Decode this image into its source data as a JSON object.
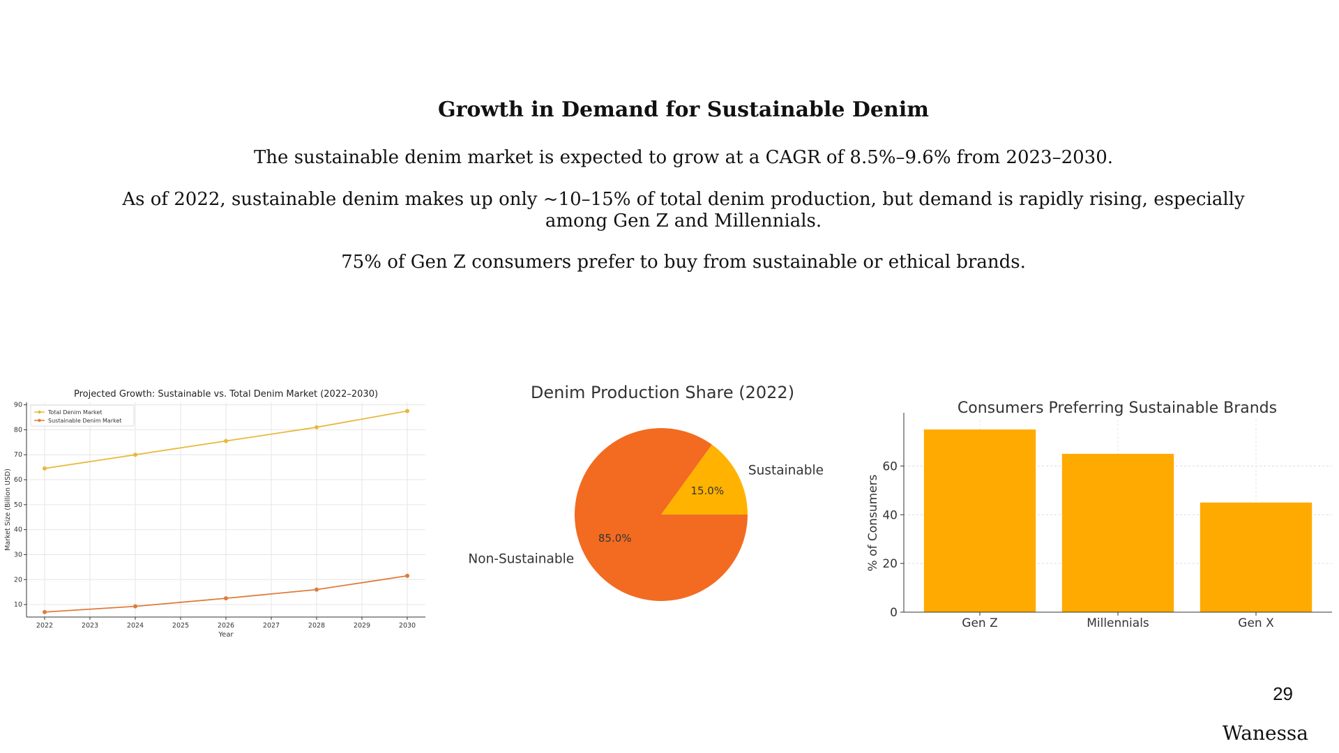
{
  "slide": {
    "title": "Growth in Demand for Sustainable Denim",
    "paragraphs": [
      "The sustainable denim market is expected to grow at a CAGR of 8.5%–9.6% from 2023–2030.",
      "As of 2022, sustainable denim makes up only ~10–15% of total denim production, but demand is rapidly rising, especially among Gen Z and Millennials.",
      "75% of Gen Z consumers prefer to buy from sustainable or ethical brands."
    ],
    "page_number": "29",
    "author": "Wanessa"
  },
  "chart_data": [
    {
      "type": "line",
      "title": "Projected Growth: Sustainable vs. Total Denim Market (2022–2030)",
      "xlabel": "Year",
      "ylabel": "Market Size (Billion USD)",
      "x_ticks": [
        "2022",
        "2023",
        "2024",
        "2025",
        "2026",
        "2027",
        "2028",
        "2029",
        "2030"
      ],
      "y_ticks": [
        10,
        20,
        30,
        40,
        50,
        60,
        70,
        80,
        90
      ],
      "xlim": [
        2021.6,
        2030.4
      ],
      "ylim": [
        5,
        91
      ],
      "grid": true,
      "legend_position": "top-left",
      "series": [
        {
          "name": "Total Denim Market",
          "color": "#e8b83a",
          "x": [
            2022,
            2024,
            2026,
            2028,
            2030
          ],
          "y": [
            64.5,
            70,
            75.5,
            81,
            87.5
          ]
        },
        {
          "name": "Sustainable Denim Market",
          "color": "#e07b39",
          "x": [
            2022,
            2024,
            2026,
            2028,
            2030
          ],
          "y": [
            7,
            9.3,
            12.5,
            16,
            21.5
          ]
        }
      ]
    },
    {
      "type": "pie",
      "title": "Denim Production Share (2022)",
      "slices": [
        {
          "label": "Sustainable",
          "value": 15.0,
          "pct_label": "15.0%",
          "color": "#ffb300"
        },
        {
          "label": "Non-Sustainable",
          "value": 85.0,
          "pct_label": "85.0%",
          "color": "#f26b21"
        }
      ]
    },
    {
      "type": "bar",
      "title": "Consumers Preferring Sustainable Brands",
      "xlabel": "",
      "ylabel": "% of Consumers",
      "categories": [
        "Gen Z",
        "Millennials",
        "Gen X"
      ],
      "values": [
        75,
        65,
        45
      ],
      "y_ticks": [
        0,
        20,
        40,
        60
      ],
      "ylim": [
        0,
        79
      ],
      "color": "#ffaa00",
      "grid": true
    }
  ]
}
